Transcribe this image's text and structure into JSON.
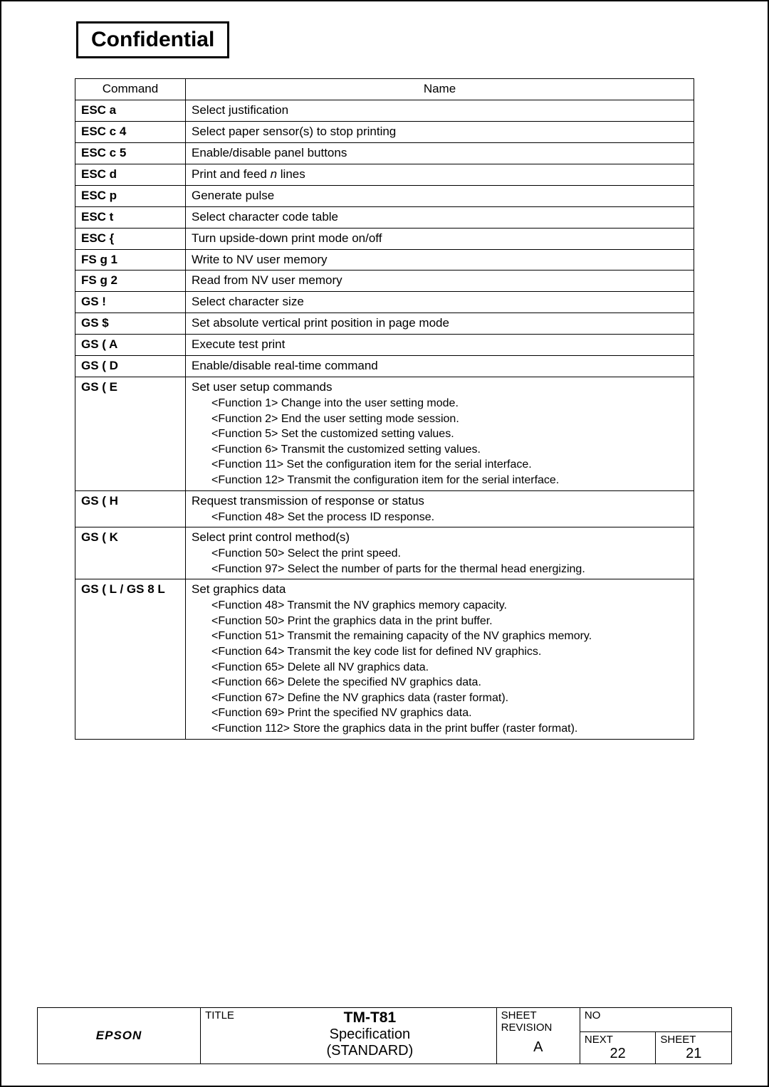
{
  "header": {
    "confidential": "Confidential"
  },
  "table": {
    "head": {
      "command": "Command",
      "name": "Name"
    },
    "rows": [
      {
        "cmd": "ESC a",
        "name": "Select justification"
      },
      {
        "cmd": "ESC c 4",
        "name": "Select paper sensor(s) to stop printing"
      },
      {
        "cmd": "ESC c 5",
        "name": "Enable/disable panel buttons"
      },
      {
        "cmd": "ESC d",
        "name_pre": "Print and feed ",
        "name_italic": "n",
        "name_post": " lines"
      },
      {
        "cmd": "ESC p",
        "name": "Generate pulse"
      },
      {
        "cmd": "ESC t",
        "name": "Select character code table"
      },
      {
        "cmd": "ESC {",
        "name": "Turn upside-down print mode on/off"
      },
      {
        "cmd": "FS g 1",
        "name": "Write to NV user memory"
      },
      {
        "cmd": "FS g 2",
        "name": "Read from NV user memory"
      },
      {
        "cmd": "GS !",
        "name": "Select character size"
      },
      {
        "cmd": "GS $",
        "name": "Set absolute vertical print position in page mode"
      },
      {
        "cmd": "GS ( A",
        "name": "Execute test print"
      },
      {
        "cmd": "GS ( D",
        "name": "Enable/disable real-time command"
      },
      {
        "cmd": "GS ( E",
        "name": "Set user setup commands",
        "functions": [
          "<Function 1> Change into the user setting mode.",
          "<Function 2> End the user setting mode session.",
          "<Function 5> Set the customized setting values.",
          "<Function 6> Transmit the customized setting values.",
          "<Function 11> Set the configuration item for the serial interface.",
          "<Function 12> Transmit the configuration item for the serial interface."
        ]
      },
      {
        "cmd": "GS ( H",
        "name": "Request transmission of response or status",
        "functions": [
          "<Function 48> Set the process ID response."
        ]
      },
      {
        "cmd": "GS ( K",
        "name": "Select print control method(s)",
        "functions": [
          "<Function 50> Select the print speed.",
          "<Function 97> Select the number of parts for the thermal head energizing."
        ]
      },
      {
        "cmd": "GS ( L / GS 8 L",
        "name": "Set graphics data",
        "functions": [
          "<Function 48> Transmit the NV graphics memory capacity.",
          "<Function 50> Print the graphics data in the print buffer.",
          "<Function 51> Transmit the remaining capacity of the NV graphics memory.",
          "<Function 64> Transmit the key code list for defined NV graphics.",
          "<Function 65> Delete all NV graphics data.",
          "<Function 66> Delete the specified NV graphics data.",
          "<Function 67> Define the NV graphics data (raster format).",
          "<Function 69> Print the specified NV graphics data.",
          "<Function 112> Store the graphics data in the print buffer (raster format)."
        ]
      }
    ]
  },
  "footer": {
    "epson": "EPSON",
    "title_label": "TITLE",
    "title_main": "TM-T81",
    "title_sub1": "Specification",
    "title_sub2": "(STANDARD)",
    "sheet_rev_label1": "SHEET",
    "sheet_rev_label2": "REVISION",
    "rev": "A",
    "no_label": "NO",
    "next_label": "NEXT",
    "next_val": "22",
    "sheet_label": "SHEET",
    "sheet_val": "21"
  }
}
